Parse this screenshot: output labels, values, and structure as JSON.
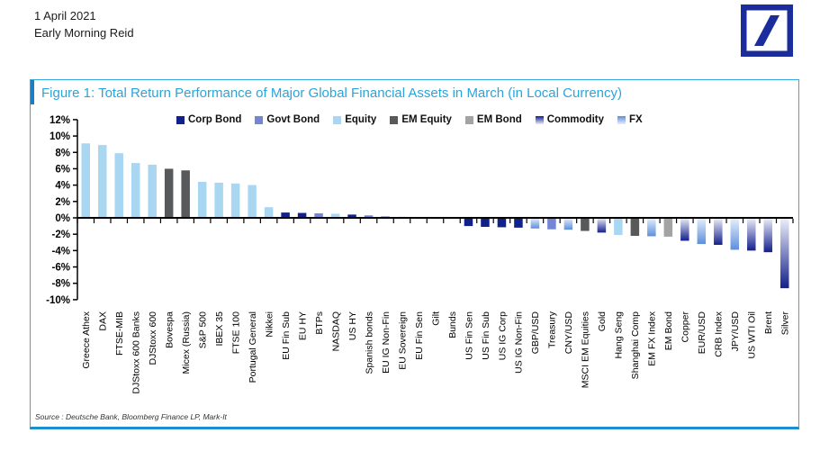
{
  "header": {
    "date": "1 April 2021",
    "publication": "Early Morning Reid"
  },
  "logo": {
    "name": "Deutsche Bank logo",
    "color": "#1b2c9b"
  },
  "figure": {
    "title": "Figure 1: Total Return Performance of Major Global Financial Assets in March (in Local Currency)",
    "source": "Source : Deutsche Bank, Bloomberg Finance LP, Mark-It",
    "accent_color": "#2aa4dc"
  },
  "chart_data": {
    "type": "bar",
    "title": "Total Return Performance of Major Global Financial Assets in March (in Local Currency)",
    "xlabel": "",
    "ylabel": "",
    "ylim": [
      -10,
      12
    ],
    "ytick_step": 2,
    "ytick_suffix": "%",
    "grid": false,
    "legend_position": "top-center",
    "classes": {
      "corp_bond": {
        "label": "Corp Bond",
        "color": "#10218b",
        "fill": "solid"
      },
      "govt_bond": {
        "label": "Govt Bond",
        "color": "#7285d6",
        "fill": "solid"
      },
      "equity": {
        "label": "Equity",
        "color": "#a9d7f2",
        "fill": "solid"
      },
      "em_equity": {
        "label": "EM Equity",
        "color": "#58595b",
        "fill": "solid"
      },
      "em_bond": {
        "label": "EM Bond",
        "color": "#a3a3a3",
        "fill": "solid"
      },
      "commodity": {
        "label": "Commodity",
        "color": "#141f8c",
        "fill": "gradient",
        "gradient_from": "#eef1fa"
      },
      "fx": {
        "label": "FX",
        "color": "#5d8edb",
        "fill": "gradient",
        "gradient_from": "#e7f1fc"
      }
    },
    "legend_order": [
      "corp_bond",
      "govt_bond",
      "equity",
      "em_equity",
      "em_bond",
      "commodity",
      "fx"
    ],
    "points": [
      {
        "category": "Greece Athex",
        "value": 9.1,
        "class": "equity"
      },
      {
        "category": "DAX",
        "value": 8.9,
        "class": "equity"
      },
      {
        "category": "FTSE-MIB",
        "value": 7.9,
        "class": "equity"
      },
      {
        "category": "DJStoxx 600 Banks",
        "value": 6.7,
        "class": "equity"
      },
      {
        "category": "DJStoxx 600",
        "value": 6.5,
        "class": "equity"
      },
      {
        "category": "Bovespa",
        "value": 6.0,
        "class": "em_equity"
      },
      {
        "category": "Micex (Russia)",
        "value": 5.8,
        "class": "em_equity"
      },
      {
        "category": "S&P 500",
        "value": 4.4,
        "class": "equity"
      },
      {
        "category": "IBEX 35",
        "value": 4.3,
        "class": "equity"
      },
      {
        "category": "FTSE 100",
        "value": 4.2,
        "class": "equity"
      },
      {
        "category": "Portugal General",
        "value": 4.0,
        "class": "equity"
      },
      {
        "category": "Nikkei",
        "value": 1.3,
        "class": "equity"
      },
      {
        "category": "EU Fin Sub",
        "value": 0.65,
        "class": "corp_bond"
      },
      {
        "category": "EU HY",
        "value": 0.6,
        "class": "corp_bond"
      },
      {
        "category": "BTPs",
        "value": 0.55,
        "class": "govt_bond"
      },
      {
        "category": "NASDAQ",
        "value": 0.5,
        "class": "equity"
      },
      {
        "category": "US HY",
        "value": 0.4,
        "class": "corp_bond"
      },
      {
        "category": "Spanish bonds",
        "value": 0.3,
        "class": "govt_bond"
      },
      {
        "category": "EU IG Non-Fin",
        "value": 0.15,
        "class": "corp_bond"
      },
      {
        "category": "EU Sovereign",
        "value": 0.12,
        "class": "govt_bond"
      },
      {
        "category": "EU Fin Sen",
        "value": 0.1,
        "class": "corp_bond"
      },
      {
        "category": "Gilt",
        "value": 0.05,
        "class": "govt_bond"
      },
      {
        "category": "Bunds",
        "value": 0.02,
        "class": "govt_bond"
      },
      {
        "category": "US Fin Sen",
        "value": -1.0,
        "class": "corp_bond"
      },
      {
        "category": "US Fin Sub",
        "value": -1.1,
        "class": "corp_bond"
      },
      {
        "category": "US IG Corp",
        "value": -1.15,
        "class": "corp_bond"
      },
      {
        "category": "US IG Non-Fin",
        "value": -1.2,
        "class": "corp_bond"
      },
      {
        "category": "GBP/USD",
        "value": -1.3,
        "class": "fx"
      },
      {
        "category": "Treasury",
        "value": -1.4,
        "class": "govt_bond"
      },
      {
        "category": "CNY/USD",
        "value": -1.45,
        "class": "fx"
      },
      {
        "category": "MSCI EM Equities",
        "value": -1.6,
        "class": "em_equity"
      },
      {
        "category": "Gold",
        "value": -1.8,
        "class": "commodity"
      },
      {
        "category": "Hang Seng",
        "value": -2.1,
        "class": "equity"
      },
      {
        "category": "Shanghai Comp",
        "value": -2.2,
        "class": "em_equity"
      },
      {
        "category": "EM FX Index",
        "value": -2.25,
        "class": "fx"
      },
      {
        "category": "EM Bond",
        "value": -2.3,
        "class": "em_bond"
      },
      {
        "category": "Copper",
        "value": -2.8,
        "class": "commodity"
      },
      {
        "category": "EUR/USD",
        "value": -3.2,
        "class": "fx"
      },
      {
        "category": "CRB Index",
        "value": -3.3,
        "class": "commodity"
      },
      {
        "category": "JPY/USD",
        "value": -3.9,
        "class": "fx"
      },
      {
        "category": "US WTI Oil",
        "value": -4.0,
        "class": "commodity"
      },
      {
        "category": "Brent",
        "value": -4.2,
        "class": "commodity"
      },
      {
        "category": "Silver",
        "value": -8.6,
        "class": "commodity"
      }
    ]
  }
}
